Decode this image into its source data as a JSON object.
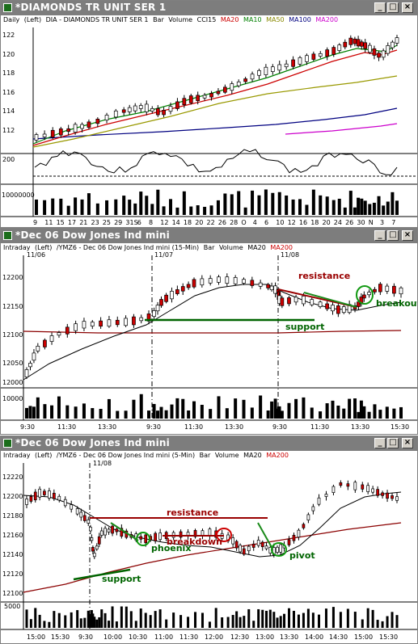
{
  "windows": [
    {
      "title": "*DIAMONDS TR UNIT SER 1",
      "info": [
        "Daily",
        "(Left)",
        "DIA - DIAMONDS TR UNIT SER 1",
        "Bar",
        "Volume",
        "CCI15",
        "MA20",
        "MA10",
        "MA50",
        "MA100",
        "MA200"
      ],
      "price_ticks": [
        "122",
        "120",
        "118",
        "116",
        "114",
        "112"
      ],
      "cci_ticks": [
        "200"
      ],
      "volume_ticks": [
        "10000000"
      ],
      "x_ticks": [
        "9",
        "11",
        "15",
        "17",
        "21",
        "23",
        "25",
        "29",
        "31S",
        "6",
        "8",
        "12",
        "14",
        "18",
        "20",
        "22",
        "26",
        "28",
        "O",
        "4",
        "6",
        "10",
        "12",
        "16",
        "18",
        "20",
        "24",
        "26",
        "30",
        "N",
        "3",
        "7"
      ]
    },
    {
      "title": "*Dec 06  Dow Jones Ind mini",
      "info": [
        "Intraday",
        "(Left)",
        "/YMZ6 - Dec 06 Dow Jones Ind mini (15-Min)",
        "Bar",
        "Volume",
        "MA20",
        "MA200"
      ],
      "session_labels": [
        "11/06",
        "11/07",
        "11/08"
      ],
      "price_ticks": [
        "12200",
        "12150",
        "12100",
        "12050",
        "12000"
      ],
      "volume_ticks": [
        "10000"
      ],
      "x_ticks": [
        "9:30",
        "11:30",
        "13:30",
        "9:30",
        "11:30",
        "13:30",
        "9:30",
        "11:30",
        "13:30",
        "15:30"
      ],
      "annotations": {
        "resistance": "resistance",
        "support": "support",
        "breakout": "breakout"
      }
    },
    {
      "title": "*Dec 06  Dow Jones Ind mini",
      "info": [
        "Intraday",
        "(Left)",
        "/YMZ6 - Dec 06 Dow Jones Ind mini (5-Min)",
        "Bar",
        "Volume",
        "MA20",
        "MA200"
      ],
      "session_labels": [
        "11/08"
      ],
      "price_ticks": [
        "12220",
        "12200",
        "12180",
        "12160",
        "12140",
        "12120",
        "12100"
      ],
      "volume_ticks": [
        "5000"
      ],
      "x_ticks": [
        "15:00",
        "15:30",
        "9:30",
        "10:00",
        "10:30",
        "11:00",
        "11:30",
        "12:00",
        "12:30",
        "13:00",
        "13:30",
        "14:00",
        "14:30",
        "15:00",
        "15:30"
      ],
      "annotations": {
        "resistance": "resistance",
        "breakdown": "breakdown",
        "phoenix": "phoenix",
        "pivot": "pivot",
        "support": "support"
      }
    }
  ],
  "colors": {
    "titlebar": "#7d7d7d",
    "up_bar": "#ffffff",
    "down_bar": "#cc0000",
    "ma_fast": "#000000",
    "ma200": "#8b0000",
    "annotation_green": "#006400",
    "annotation_red": "#990000",
    "circle_green": "#119911"
  },
  "icons": {
    "window_icon": "chart-icon",
    "minimize": "minimize-icon",
    "maximize": "maximize-icon",
    "close": "close-icon"
  }
}
